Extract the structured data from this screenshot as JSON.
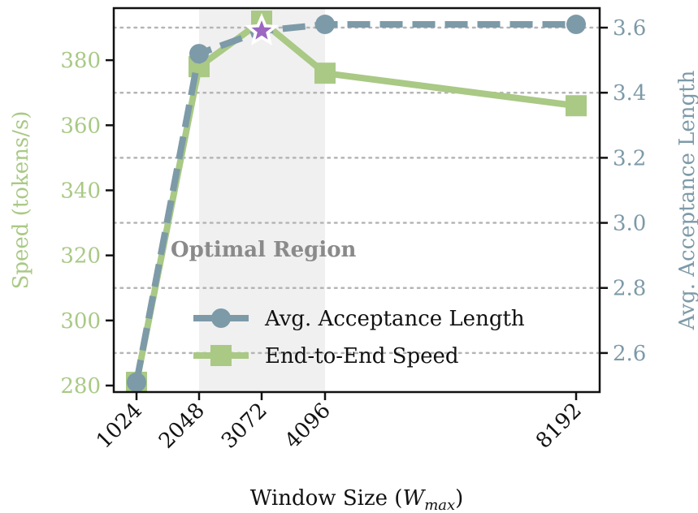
{
  "chart_data": {
    "type": "line",
    "x": [
      1024,
      2048,
      3072,
      4096,
      8192
    ],
    "x_tick_labels": [
      "1024",
      "2048",
      "3072",
      "4096",
      "8192"
    ],
    "xlabel_prefix": "Window Size (",
    "xlabel_var": "W",
    "xlabel_sub": "max",
    "xlabel_suffix": ")",
    "left_axis": {
      "label": "Speed (tokens/s)",
      "ylim": [
        278,
        396
      ],
      "ticks": [
        "280",
        "300",
        "320",
        "340",
        "360",
        "380"
      ],
      "color": "#a9c985"
    },
    "right_axis": {
      "label": "Avg. Acceptance Length",
      "ylim": [
        2.48,
        3.66
      ],
      "ticks": [
        "2.6",
        "2.8",
        "3.0",
        "3.2",
        "3.4",
        "3.6"
      ],
      "color": "#7d9aa8"
    },
    "series": [
      {
        "name": "Avg. Acceptance Length",
        "axis": "right",
        "values": [
          2.51,
          3.52,
          3.59,
          3.61,
          3.61
        ],
        "marker": "circle",
        "line_style": "dashed",
        "color": "#7d9aa8"
      },
      {
        "name": "End-to-End Speed",
        "axis": "left",
        "values": [
          281,
          378,
          392,
          376,
          366
        ],
        "marker": "square",
        "line_style": "solid",
        "color": "#a9c985"
      }
    ],
    "highlight": {
      "label": "Optimal Region",
      "x_range": [
        2048,
        4096
      ],
      "color": "#f0f0f0",
      "label_color": "#8a8a8a"
    },
    "optimum": {
      "x": 3072,
      "y_right": 3.59,
      "marker": "star",
      "color": "#9b67c1"
    },
    "grid": {
      "horizontal": true,
      "follows_axis": "right",
      "style": "dotted",
      "color": "#b5b5b5"
    },
    "legend": {
      "placement": "lower-right"
    }
  }
}
